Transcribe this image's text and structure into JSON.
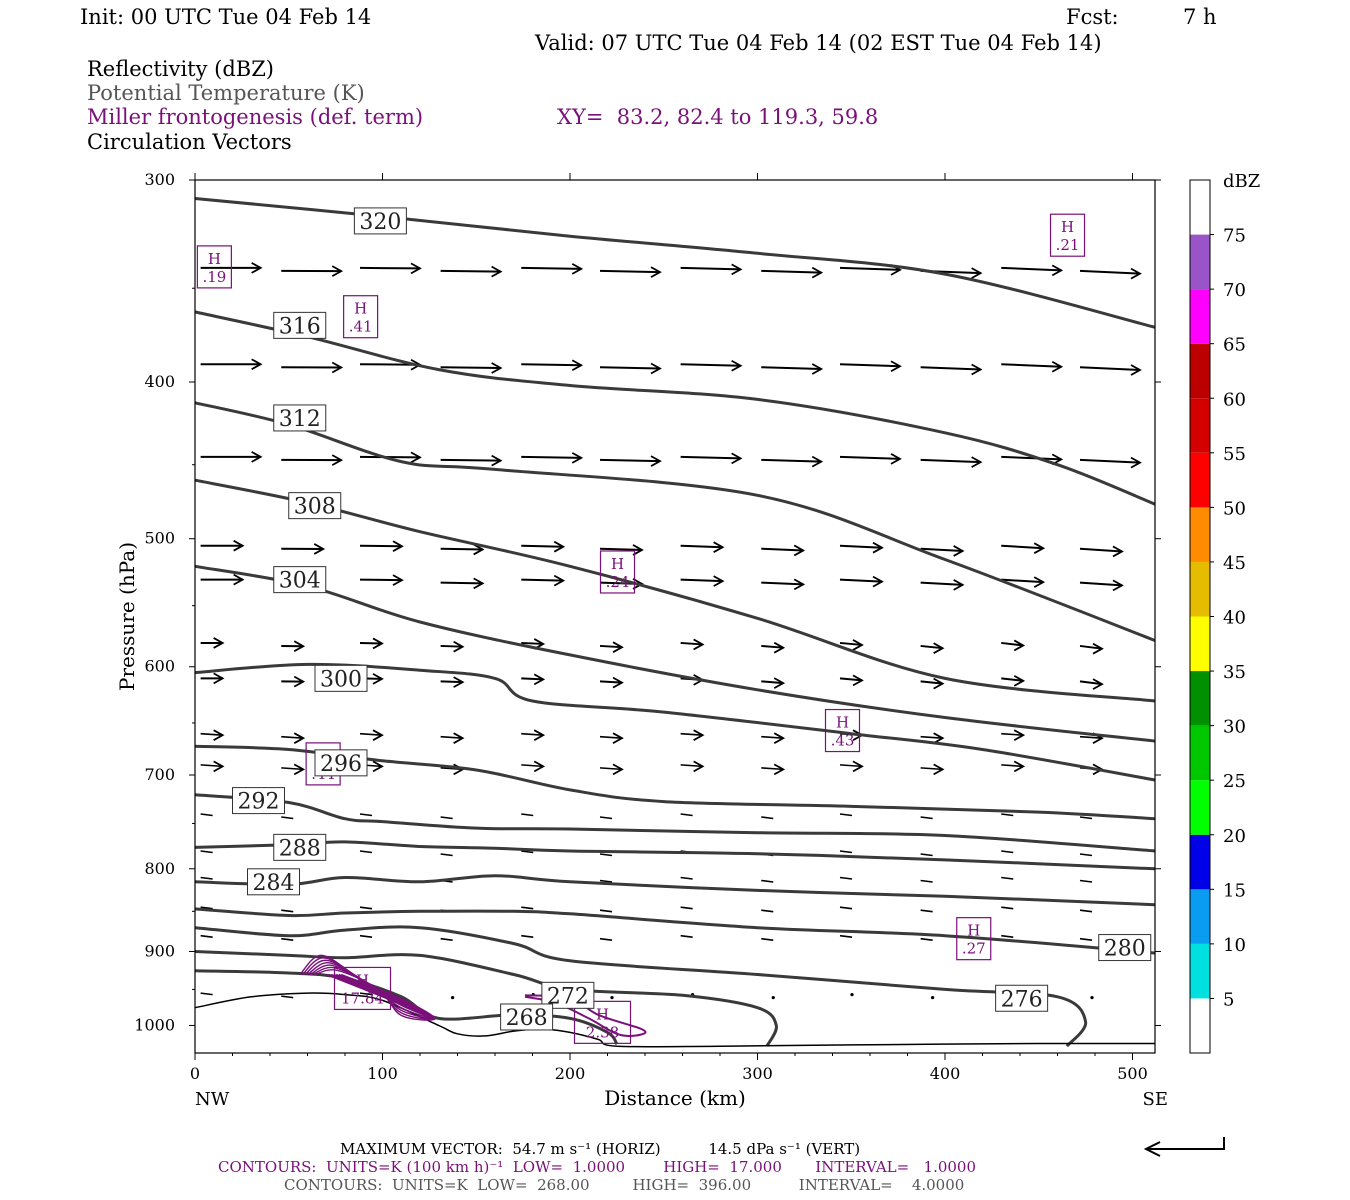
{
  "header": {
    "init": "Init: 00 UTC Tue 04 Feb 14",
    "fcst_label": "Fcst:",
    "fcst_value": "7 h",
    "valid": "Valid: 07 UTC Tue 04 Feb 14 (02 EST Tue 04 Feb 14)",
    "field1": "Reflectivity (dBZ)",
    "field2": "Potential Temperature (K)",
    "field3": "Miller frontogenesis (def. term)",
    "xy": "XY=  83.2, 82.4 to 119.3, 59.8",
    "field4": "Circulation Vectors"
  },
  "colors": {
    "theta": "#3a3a3a",
    "fronto": "#7a107a",
    "vectors": "#000000"
  },
  "chart_data": {
    "type": "line",
    "xlabel": "Distance (km)",
    "ylabel": "Pressure (hPa)",
    "xlim": [
      0,
      512
    ],
    "ylim": [
      1040,
      300
    ],
    "y_scale": "log",
    "x_ticks": [
      "0",
      "100",
      "200",
      "300",
      "400",
      "500"
    ],
    "y_ticks": [
      "300",
      "400",
      "500",
      "600",
      "700",
      "800",
      "900",
      "1000"
    ],
    "x_end_labels": {
      "left": "NW",
      "right": "SE"
    },
    "theta_contours": [
      {
        "label": "320",
        "points": [
          [
            0,
            308
          ],
          [
            100,
            316
          ],
          [
            200,
            325
          ],
          [
            300,
            333
          ],
          [
            400,
            343
          ],
          [
            512,
            370
          ]
        ],
        "label_at": [
          85,
          318
        ]
      },
      {
        "label": "316",
        "points": [
          [
            0,
            362
          ],
          [
            60,
            375
          ],
          [
            130,
            393
          ],
          [
            200,
            402
          ],
          [
            300,
            410
          ],
          [
            400,
            430
          ],
          [
            460,
            450
          ],
          [
            512,
            476
          ]
        ],
        "label_at": [
          42,
          369
        ]
      },
      {
        "label": "312",
        "points": [
          [
            0,
            412
          ],
          [
            50,
            425
          ],
          [
            110,
            448
          ],
          [
            160,
            453
          ],
          [
            300,
            470
          ],
          [
            400,
            515
          ],
          [
            512,
            578
          ]
        ],
        "label_at": [
          42,
          421
        ]
      },
      {
        "label": "308",
        "points": [
          [
            0,
            460
          ],
          [
            60,
            475
          ],
          [
            120,
            495
          ],
          [
            200,
            520
          ],
          [
            300,
            560
          ],
          [
            400,
            610
          ],
          [
            512,
            630
          ]
        ],
        "label_at": [
          50,
          477
        ]
      },
      {
        "label": "304",
        "points": [
          [
            0,
            520
          ],
          [
            60,
            535
          ],
          [
            120,
            563
          ],
          [
            200,
            590
          ],
          [
            300,
            620
          ],
          [
            400,
            645
          ],
          [
            512,
            667
          ]
        ],
        "label_at": [
          42,
          530
        ]
      },
      {
        "label": "300",
        "points": [
          [
            0,
            605
          ],
          [
            60,
            598
          ],
          [
            120,
            603
          ],
          [
            160,
            610
          ],
          [
            180,
            630
          ],
          [
            250,
            640
          ],
          [
            350,
            660
          ],
          [
            420,
            675
          ],
          [
            512,
            705
          ]
        ],
        "label_at": [
          64,
          610
        ]
      },
      {
        "label": "296",
        "points": [
          [
            0,
            672
          ],
          [
            50,
            675
          ],
          [
            100,
            686
          ],
          [
            150,
            695
          ],
          [
            200,
            715
          ],
          [
            250,
            727
          ],
          [
            350,
            732
          ],
          [
            450,
            738
          ],
          [
            512,
            745
          ]
        ],
        "label_at": [
          64,
          688
        ]
      },
      {
        "label": "292",
        "points": [
          [
            0,
            720
          ],
          [
            50,
            728
          ],
          [
            80,
            745
          ],
          [
            100,
            748
          ],
          [
            150,
            755
          ],
          [
            200,
            756
          ],
          [
            300,
            760
          ],
          [
            400,
            763
          ],
          [
            512,
            780
          ]
        ],
        "label_at": [
          20,
          726
        ]
      },
      {
        "label": "288",
        "points": [
          [
            0,
            776
          ],
          [
            50,
            773
          ],
          [
            80,
            770
          ],
          [
            120,
            775
          ],
          [
            160,
            777
          ],
          [
            200,
            780
          ],
          [
            300,
            783
          ],
          [
            400,
            790
          ],
          [
            512,
            800
          ]
        ],
        "label_at": [
          42,
          776
        ]
      },
      {
        "label": "284",
        "points": [
          [
            0,
            815
          ],
          [
            50,
            818
          ],
          [
            80,
            810
          ],
          [
            120,
            815
          ],
          [
            160,
            808
          ],
          [
            200,
            815
          ],
          [
            300,
            825
          ],
          [
            400,
            832
          ],
          [
            512,
            842
          ]
        ],
        "label_at": [
          28,
          815
        ]
      },
      {
        "label": "280",
        "points": [
          [
            0,
            847
          ],
          [
            50,
            855
          ],
          [
            80,
            852
          ],
          [
            120,
            850
          ],
          [
            170,
            850
          ],
          [
            200,
            853
          ],
          [
            300,
            870
          ],
          [
            400,
            880
          ],
          [
            512,
            902
          ]
        ],
        "label_at": [
          482,
          895
        ]
      },
      {
        "label": "276",
        "points": [
          [
            0,
            870
          ],
          [
            50,
            880
          ],
          [
            80,
            873
          ],
          [
            120,
            870
          ],
          [
            170,
            890
          ],
          [
            200,
            912
          ],
          [
            300,
            930
          ],
          [
            400,
            950
          ],
          [
            460,
            960
          ],
          [
            475,
            995
          ],
          [
            465,
            1030
          ]
        ],
        "label_at": [
          427,
          962
        ]
      },
      {
        "label": "272",
        "points": [
          [
            0,
            900
          ],
          [
            50,
            905
          ],
          [
            80,
            908
          ],
          [
            120,
            905
          ],
          [
            170,
            930
          ],
          [
            200,
            950
          ],
          [
            260,
            958
          ],
          [
            300,
            975
          ],
          [
            310,
            1000
          ],
          [
            305,
            1030
          ]
        ],
        "label_at": [
          185,
          958
        ]
      },
      {
        "label": "268",
        "points": [
          [
            0,
            925
          ],
          [
            50,
            928
          ],
          [
            80,
            935
          ],
          [
            110,
            960
          ],
          [
            130,
            990
          ],
          [
            170,
            985
          ],
          [
            200,
            990
          ],
          [
            220,
            1010
          ],
          [
            225,
            1027
          ]
        ],
        "label_at": [
          163,
          988
        ]
      }
    ],
    "terrain": [
      [
        0,
        975
      ],
      [
        30,
        960
      ],
      [
        60,
        955
      ],
      [
        80,
        957
      ],
      [
        100,
        965
      ],
      [
        130,
        1000
      ],
      [
        140,
        1012
      ],
      [
        155,
        1015
      ],
      [
        170,
        1008
      ],
      [
        185,
        1005
      ],
      [
        200,
        1010
      ],
      [
        215,
        1020
      ],
      [
        225,
        1030
      ],
      [
        280,
        1030
      ],
      [
        350,
        1028
      ],
      [
        450,
        1026
      ],
      [
        512,
        1026
      ]
    ],
    "fronto_maxima": [
      {
        "label": "H",
        "value": ".19",
        "at": [
          5,
          340
        ]
      },
      {
        "label": "H",
        "value": ".41",
        "at": [
          83,
          365
        ]
      },
      {
        "label": "H",
        "value": ".21",
        "at": [
          460,
          325
        ]
      },
      {
        "label": "H",
        "value": ".24",
        "at": [
          220,
          525
        ]
      },
      {
        "label": "H",
        "value": ".43",
        "at": [
          340,
          658
        ]
      },
      {
        "label": "H",
        "value": ".44",
        "at": [
          63,
          690
        ]
      },
      {
        "label": "H",
        "value": ".27",
        "at": [
          410,
          885
        ]
      },
      {
        "label": "H",
        "value": "17.84",
        "at": [
          84,
          950
        ]
      },
      {
        "label": "H",
        "value": "2.38",
        "at": [
          212,
          997
        ]
      }
    ],
    "colorbar": {
      "label": "dBZ",
      "levels": [
        "5",
        "10",
        "15",
        "20",
        "25",
        "30",
        "35",
        "40",
        "45",
        "50",
        "55",
        "60",
        "65",
        "70",
        "75"
      ],
      "colors": [
        "#ffffff",
        "#00e0e0",
        "#0a9cf0",
        "#0000e8",
        "#00ff00",
        "#00c800",
        "#009000",
        "#ffff00",
        "#e6bc00",
        "#ff8c00",
        "#ff0000",
        "#d40000",
        "#bc0000",
        "#ff00ff",
        "#9955c8",
        "#ffffff"
      ]
    }
  },
  "footer": {
    "line1": "MAXIMUM VECTOR:  54.7 m s⁻¹ (HORIZ)          14.5 dPa s⁻¹ (VERT)",
    "line2": "CONTOURS:  UNITS=K (100 km h)⁻¹  LOW=  1.0000        HIGH=  17.000       INTERVAL=   1.0000",
    "line3": "CONTOURS:  UNITS=K  LOW=  268.00         HIGH=  396.00          INTERVAL=    4.0000"
  }
}
